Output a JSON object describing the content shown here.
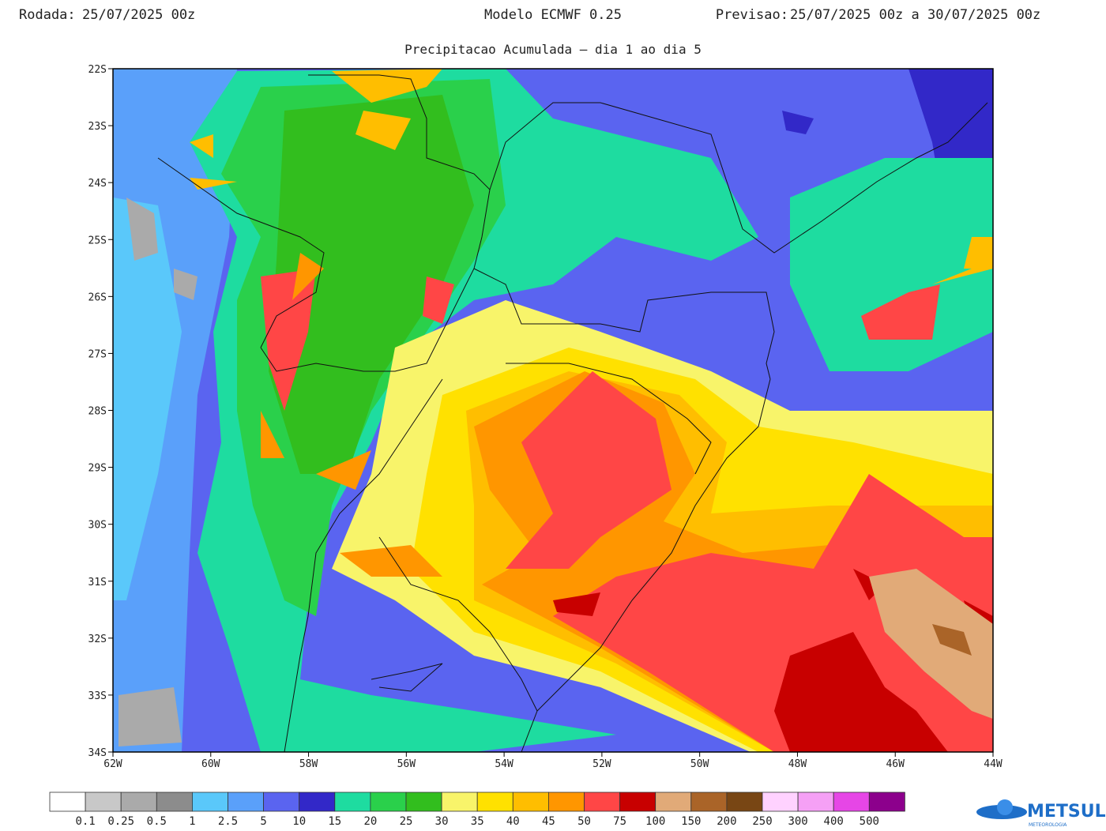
{
  "header": {
    "rodada_label": "Rodada:",
    "rodada_value": "25/07/2025 00z",
    "model": "Modelo ECMWF 0.25",
    "previsao_label": "Previsao:",
    "previsao_value": "25/07/2025 00z a 30/07/2025 00z",
    "subtitle": "Precipitacao Acumulada – dia 1 ao dia 5"
  },
  "map": {
    "lat_labels": [
      "22S",
      "23S",
      "24S",
      "25S",
      "26S",
      "27S",
      "28S",
      "29S",
      "30S",
      "31S",
      "32S",
      "33S",
      "34S"
    ],
    "lon_labels": [
      "62W",
      "60W",
      "58W",
      "56W",
      "54W",
      "52W",
      "50W",
      "48W",
      "46W",
      "44W"
    ]
  },
  "colorbar": {
    "colors": [
      "#ffffff",
      "#c8c8c8",
      "#aaaaaa",
      "#8c8c8c",
      "#5ac8fa",
      "#5aa0fa",
      "#5a64f0",
      "#3228c8",
      "#1edca0",
      "#2ad04b",
      "#32be1e",
      "#f8f46a",
      "#ffe100",
      "#ffbe00",
      "#ff9600",
      "#ff4646",
      "#c80000",
      "#e1aa78",
      "#aa6428",
      "#784614",
      "#ffd2ff",
      "#f5a0f5",
      "#e646e6",
      "#8c008c"
    ],
    "labels": [
      "0.1",
      "0.25",
      "0.5",
      "1",
      "2.5",
      "5",
      "10",
      "15",
      "20",
      "25",
      "30",
      "35",
      "40",
      "45",
      "50",
      "75",
      "100",
      "150",
      "200",
      "250",
      "300",
      "400",
      "500"
    ]
  },
  "logo": {
    "name": "METSUL",
    "tagline": "METEOROLOGIA"
  }
}
